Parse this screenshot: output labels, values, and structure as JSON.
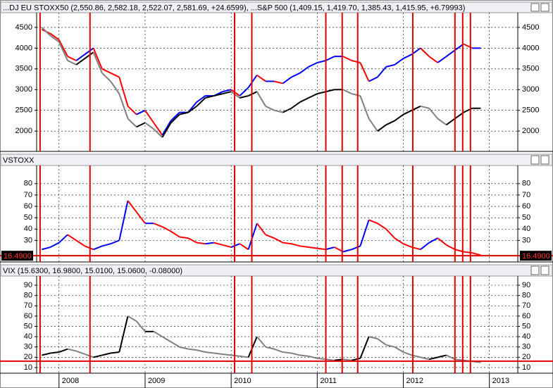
{
  "chart_data": [
    {
      "type": "line",
      "title": "...DJ EU STOXX50 (2,550.86, 2,582.18, 2,522.07, 2,581.69, +24.6599), ...S&P 500 (1,409.15, 1,419.70, 1,385.43, 1,415.95, +6.79993)",
      "x": [
        2007.8,
        2007.9,
        2008.0,
        2008.1,
        2008.2,
        2008.3,
        2008.4,
        2008.5,
        2008.6,
        2008.7,
        2008.8,
        2008.9,
        2009.0,
        2009.1,
        2009.2,
        2009.3,
        2009.4,
        2009.5,
        2009.6,
        2009.7,
        2009.8,
        2009.9,
        2010.0,
        2010.1,
        2010.2,
        2010.3,
        2010.4,
        2010.5,
        2010.6,
        2010.7,
        2010.8,
        2010.9,
        2011.0,
        2011.1,
        2011.2,
        2011.3,
        2011.4,
        2011.5,
        2011.6,
        2011.7,
        2011.8,
        2011.9,
        2012.0,
        2012.1,
        2012.2,
        2012.3,
        2012.4,
        2012.5,
        2012.6,
        2012.7,
        2012.8,
        2012.9
      ],
      "xlim": [
        2007.74,
        2013.33
      ],
      "xticks": [
        2008,
        2009,
        2010,
        2011,
        2012,
        2013
      ],
      "ylim": [
        1510,
        4855
      ],
      "yticks": [
        2000,
        2500,
        3000,
        3500,
        4000,
        4500
      ],
      "grid": true,
      "event_lines": [
        2007.78,
        2008.36,
        2010.04,
        2010.24,
        2011.1,
        2011.29,
        2011.47,
        2012.11,
        2012.6,
        2012.69,
        2012.78
      ],
      "series": [
        {
          "color": "#0000ff",
          "down_color": "#ff0000",
          "values": [
            4450,
            4350,
            4200,
            3800,
            3700,
            3850,
            4000,
            3500,
            3400,
            3300,
            2600,
            2400,
            2500,
            2200,
            1900,
            2250,
            2450,
            2450,
            2700,
            2850,
            2850,
            2950,
            3000,
            2850,
            3050,
            3350,
            3200,
            3200,
            3150,
            3300,
            3400,
            3550,
            3650,
            3700,
            3800,
            3800,
            3700,
            3650,
            3200,
            3300,
            3550,
            3600,
            3750,
            3850,
            4000,
            3800,
            3650,
            3800,
            3950,
            4100,
            4000,
            4000
          ]
        },
        {
          "color": "#000000",
          "down_color": "#808080",
          "values": [
            4500,
            4300,
            4150,
            3700,
            3600,
            3750,
            3900,
            3400,
            3200,
            2900,
            2300,
            2100,
            2200,
            2050,
            1850,
            2200,
            2400,
            2450,
            2600,
            2800,
            2850,
            2900,
            2950,
            2800,
            2850,
            2950,
            2600,
            2500,
            2450,
            2550,
            2700,
            2800,
            2900,
            2950,
            3000,
            3000,
            2900,
            2850,
            2300,
            2000,
            2150,
            2250,
            2400,
            2500,
            2600,
            2550,
            2300,
            2150,
            2300,
            2450,
            2550,
            2550
          ]
        }
      ]
    },
    {
      "type": "line",
      "title": "VSTOXX",
      "x": [
        2007.8,
        2007.9,
        2008.0,
        2008.1,
        2008.2,
        2008.3,
        2008.4,
        2008.5,
        2008.6,
        2008.7,
        2008.8,
        2008.9,
        2009.0,
        2009.1,
        2009.2,
        2009.3,
        2009.4,
        2009.5,
        2009.6,
        2009.7,
        2009.8,
        2009.9,
        2010.0,
        2010.1,
        2010.2,
        2010.3,
        2010.4,
        2010.5,
        2010.6,
        2010.7,
        2010.8,
        2010.9,
        2011.0,
        2011.1,
        2011.2,
        2011.3,
        2011.4,
        2011.5,
        2011.6,
        2011.7,
        2011.8,
        2011.9,
        2012.0,
        2012.1,
        2012.2,
        2012.3,
        2012.4,
        2012.5,
        2012.6,
        2012.7,
        2012.8,
        2012.9
      ],
      "xlim": [
        2007.74,
        2013.33
      ],
      "xticks": [
        2008,
        2009,
        2010,
        2011,
        2012,
        2013
      ],
      "ylim": [
        11,
        96
      ],
      "yticks": [
        30,
        40,
        50,
        60,
        70,
        80
      ],
      "grid": true,
      "event_lines": [
        2007.78,
        2008.36,
        2010.04,
        2010.24,
        2011.1,
        2011.29,
        2011.47,
        2012.11,
        2012.6,
        2012.69,
        2012.78
      ],
      "reference_line": {
        "value": 16.49,
        "label": "16.4900"
      },
      "series": [
        {
          "color": "#0000ff",
          "down_color": "#ff0000",
          "values": [
            22,
            24,
            28,
            35,
            30,
            25,
            22,
            25,
            27,
            30,
            65,
            55,
            45,
            45,
            42,
            38,
            33,
            32,
            28,
            27,
            28,
            26,
            24,
            27,
            22,
            45,
            35,
            32,
            28,
            27,
            25,
            24,
            23,
            22,
            24,
            20,
            22,
            25,
            48,
            45,
            40,
            32,
            27,
            24,
            22,
            28,
            32,
            26,
            22,
            20,
            19,
            17
          ]
        }
      ]
    },
    {
      "type": "line",
      "title": "VIX (15.6300, 16.9800, 15.0100, 15.0600, -0.08000)",
      "x": [
        2007.8,
        2007.9,
        2008.0,
        2008.1,
        2008.2,
        2008.3,
        2008.4,
        2008.5,
        2008.6,
        2008.7,
        2008.8,
        2008.9,
        2009.0,
        2009.1,
        2009.2,
        2009.3,
        2009.4,
        2009.5,
        2009.6,
        2009.7,
        2009.8,
        2009.9,
        2010.0,
        2010.1,
        2010.2,
        2010.3,
        2010.4,
        2010.5,
        2010.6,
        2010.7,
        2010.8,
        2010.9,
        2011.0,
        2011.1,
        2011.2,
        2011.3,
        2011.4,
        2011.5,
        2011.6,
        2011.7,
        2011.8,
        2011.9,
        2012.0,
        2012.1,
        2012.2,
        2012.3,
        2012.4,
        2012.5,
        2012.6,
        2012.7,
        2012.8,
        2012.9
      ],
      "xlim": [
        2007.74,
        2013.33
      ],
      "xticks": [
        2008,
        2009,
        2010,
        2011,
        2012,
        2013
      ],
      "ylim": [
        4.5,
        98.9
      ],
      "yticks": [
        10,
        20,
        30,
        40,
        50,
        60,
        70,
        80,
        90
      ],
      "grid": true,
      "event_lines": [
        2007.78,
        2008.36,
        2010.04,
        2010.24,
        2011.1,
        2011.29,
        2011.47,
        2012.11,
        2012.6,
        2012.69,
        2012.78
      ],
      "reference_line": {
        "value": 16.2
      },
      "series": [
        {
          "color": "#000000",
          "down_color": "#808080",
          "values": [
            22,
            24,
            25,
            28,
            26,
            23,
            20,
            22,
            24,
            25,
            60,
            55,
            45,
            45,
            40,
            35,
            30,
            28,
            27,
            25,
            24,
            23,
            22,
            21,
            20,
            40,
            30,
            28,
            25,
            24,
            22,
            21,
            19,
            18,
            17,
            18,
            17,
            19,
            40,
            38,
            32,
            30,
            25,
            22,
            20,
            18,
            20,
            22,
            18,
            17,
            16,
            15
          ]
        }
      ]
    }
  ]
}
